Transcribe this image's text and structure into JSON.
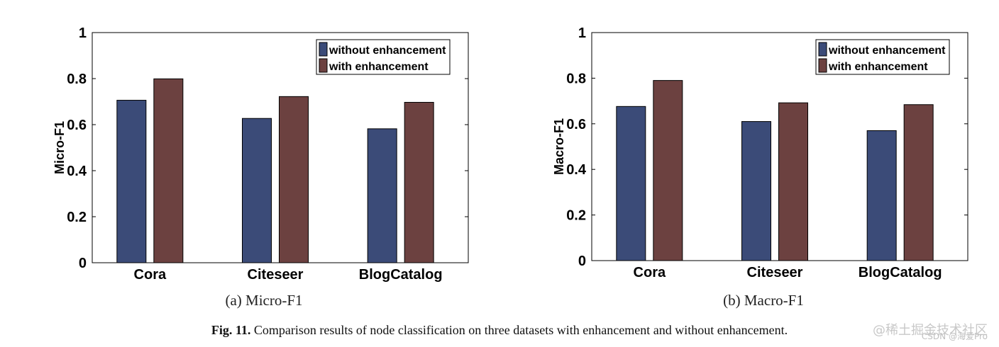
{
  "chart_data": [
    {
      "type": "bar",
      "categories": [
        "Cora",
        "Citeseer",
        "BlogCatalog"
      ],
      "series": [
        {
          "name": "without enhancement",
          "values": [
            0.706,
            0.627,
            0.582
          ],
          "color": "#3b4b78"
        },
        {
          "name": "with enhancement",
          "values": [
            0.799,
            0.722,
            0.697
          ],
          "color": "#6c4140"
        }
      ],
      "ylabel": "Micro-F1",
      "xlabel": "",
      "ylim": [
        0,
        1
      ],
      "yticks": [
        "0",
        "0.2",
        "0.4",
        "0.6",
        "0.8",
        "1"
      ],
      "legend_position": "top-right",
      "subcaption": "(a) Micro-F1"
    },
    {
      "type": "bar",
      "categories": [
        "Cora",
        "Citeseer",
        "BlogCatalog"
      ],
      "series": [
        {
          "name": "without enhancement",
          "values": [
            0.676,
            0.61,
            0.57
          ],
          "color": "#3b4b78"
        },
        {
          "name": "with enhancement",
          "values": [
            0.79,
            0.692,
            0.684
          ],
          "color": "#6c4140"
        }
      ],
      "ylabel": "Macro-F1",
      "xlabel": "",
      "ylim": [
        0,
        1
      ],
      "yticks": [
        "0",
        "0.2",
        "0.4",
        "0.6",
        "0.8",
        "1"
      ],
      "legend_position": "top-right",
      "subcaption": "(b) Macro-F1"
    }
  ],
  "caption": {
    "label": "Fig. 11.",
    "text": "Comparison results of node classification on three datasets with enhancement and without enhancement."
  },
  "watermark": {
    "line1": "@稀土掘金技术社区",
    "line2": "CSDN @海爱Pro"
  }
}
